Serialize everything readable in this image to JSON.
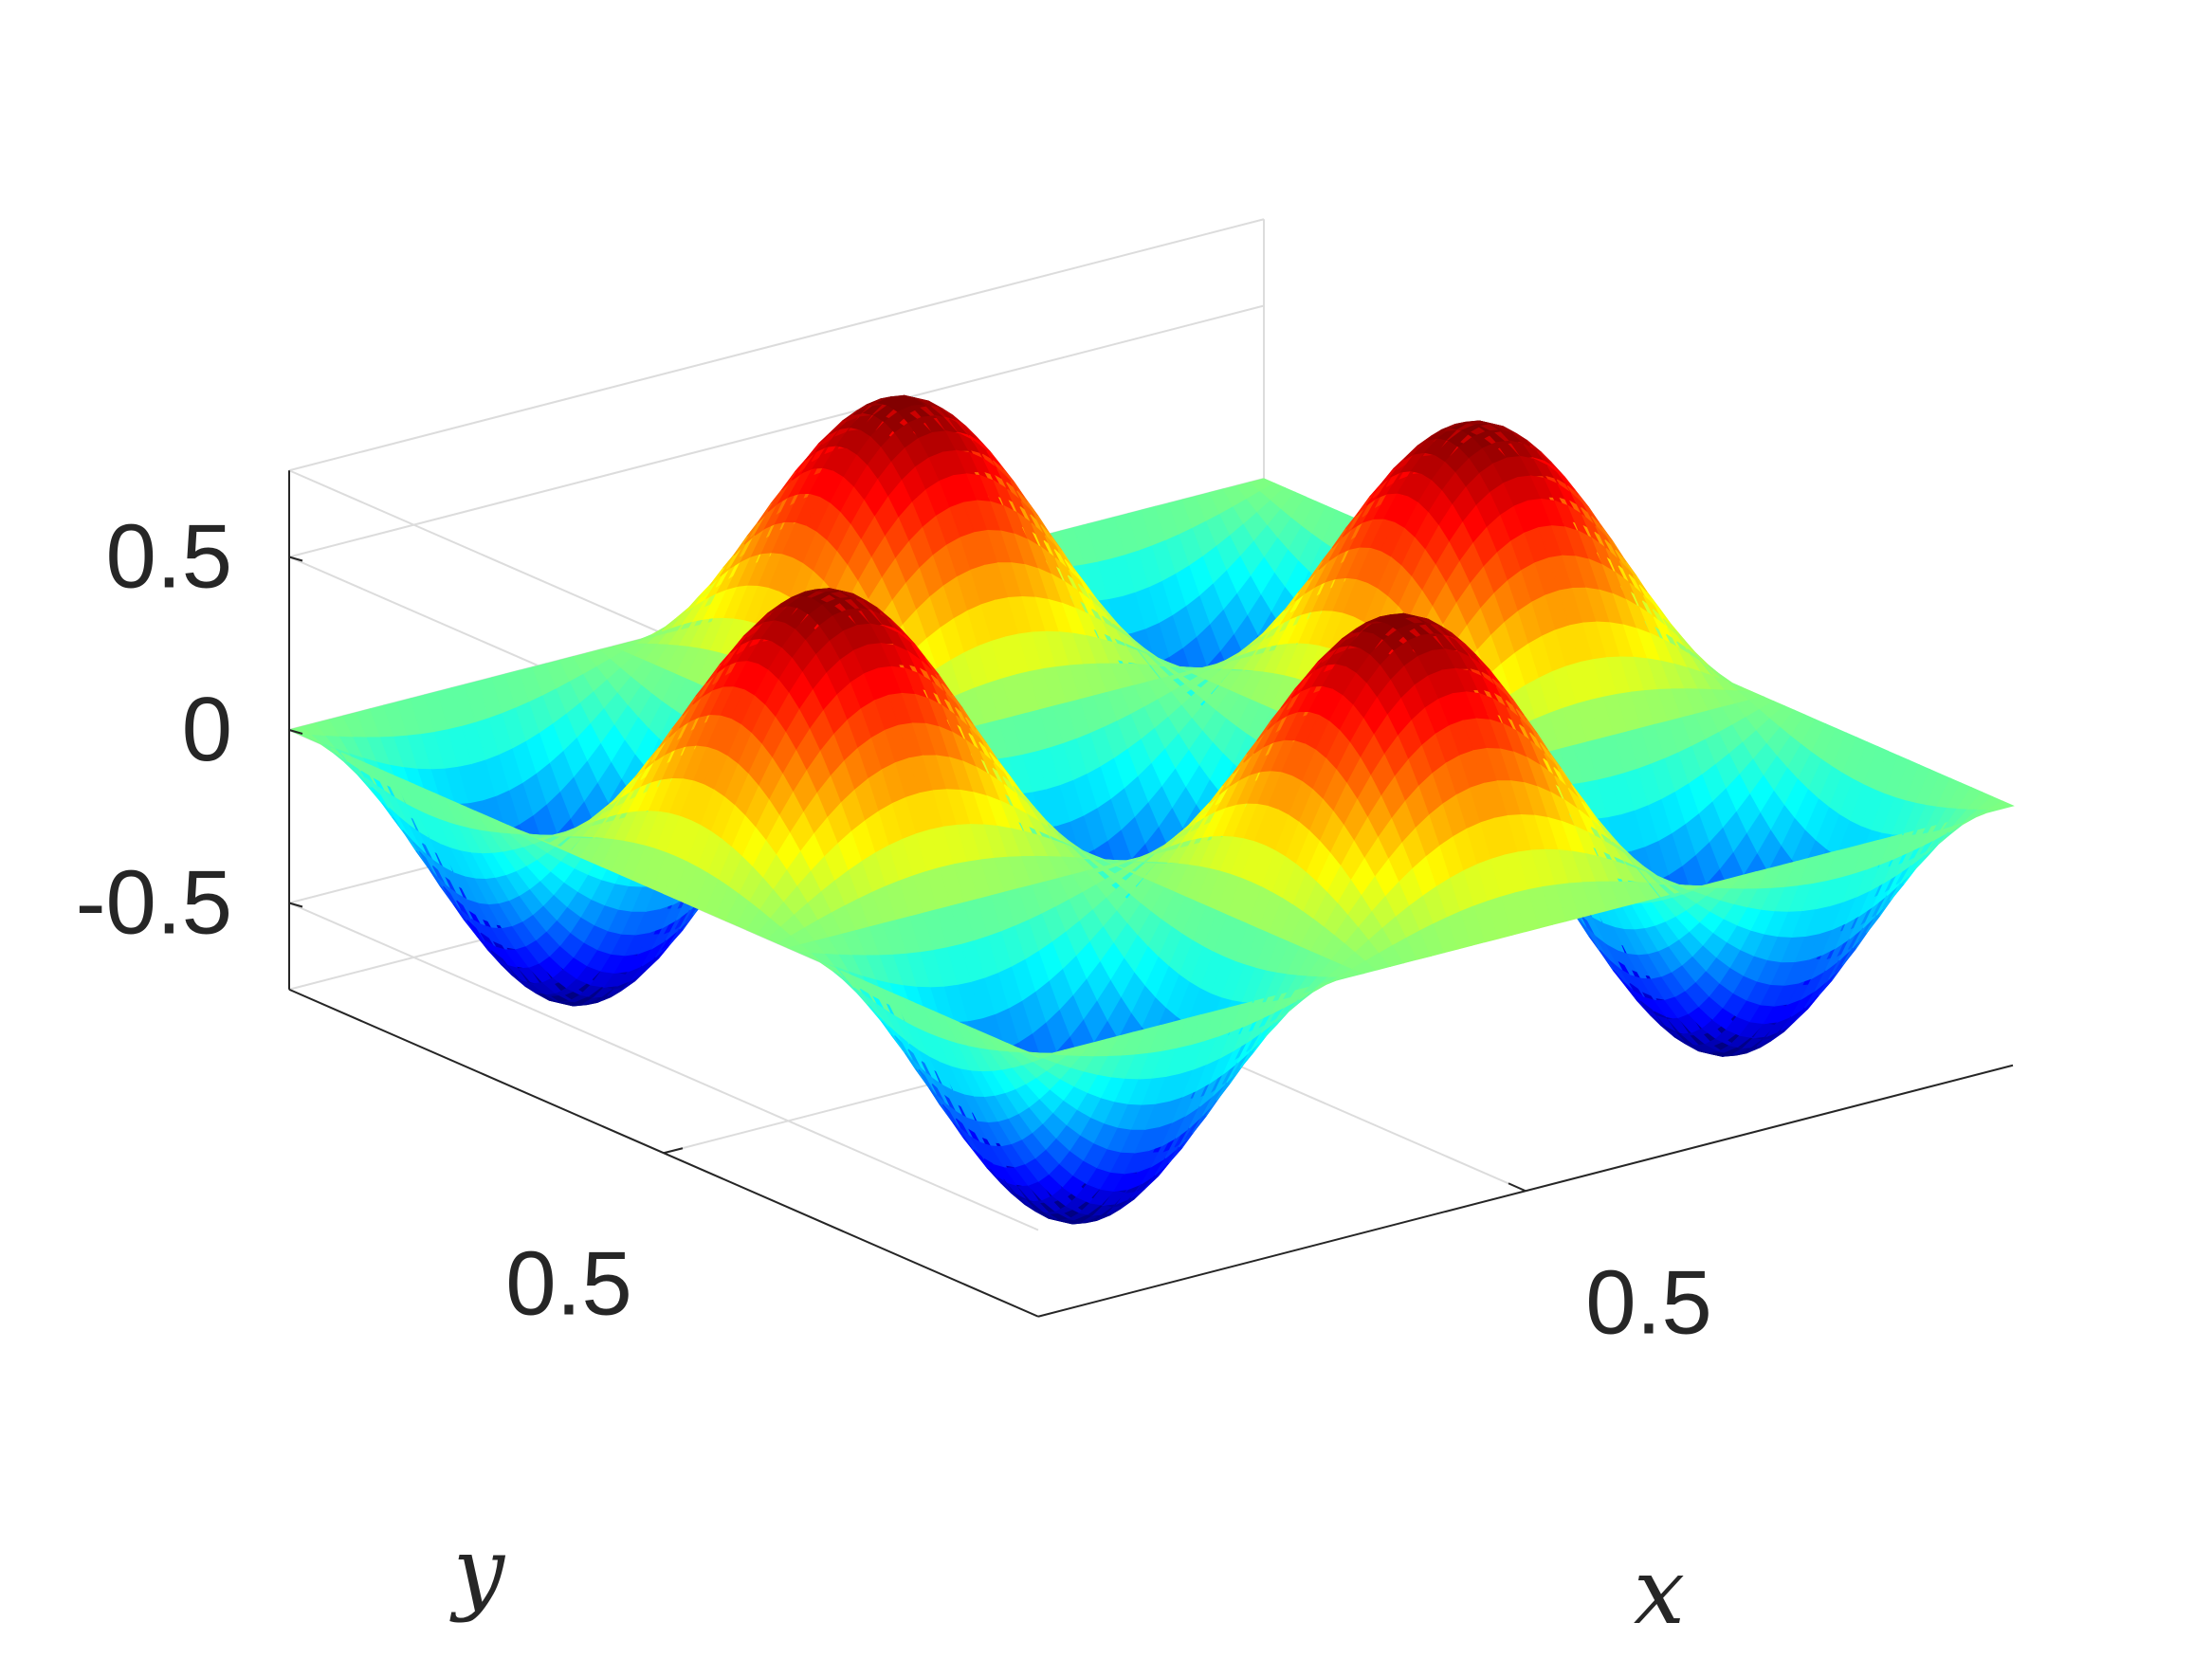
{
  "chart_data": {
    "type": "surface",
    "xlabel": "x",
    "ylabel": "y",
    "zlabel": "",
    "x_range": [
      0,
      1
    ],
    "y_range": [
      0,
      1
    ],
    "zlim": [
      -0.75,
      0.75
    ],
    "x_ticks": [
      {
        "value": 0.5,
        "label": "0.5"
      }
    ],
    "y_ticks": [
      {
        "value": 0.5,
        "label": "0.5"
      }
    ],
    "z_ticks": [
      {
        "value": 0.5,
        "label": "0.5"
      },
      {
        "value": 0,
        "label": "0"
      },
      {
        "value": -0.5,
        "label": "-0.5"
      }
    ],
    "surface": {
      "function": "z = -0.75 * sin(3*pi*x) * sin(3*pi*y)",
      "z_min": -0.75,
      "z_max": 0.75,
      "colormap": "jet"
    },
    "grid": true,
    "box": true,
    "colors": {
      "axis_line": "#262626",
      "grid_line": "#dcdcdc",
      "jet_low": "#00008f",
      "jet_mid": "#ffff00",
      "jet_high": "#800000"
    }
  }
}
